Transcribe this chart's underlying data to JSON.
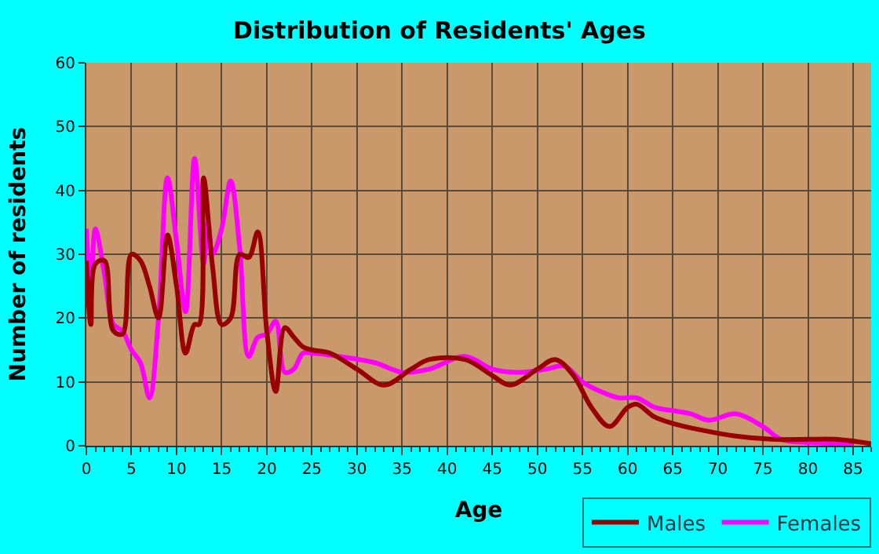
{
  "chart_data": {
    "type": "line",
    "title": "Distribution of Residents' Ages",
    "xlabel": "Age",
    "ylabel": "Number of residents",
    "series": [
      {
        "name": "Males",
        "color": "#990000",
        "x": [
          0,
          0.5,
          1,
          2,
          3,
          4,
          5,
          6,
          7,
          8,
          9,
          10,
          11,
          12,
          12.5,
          13,
          14,
          15,
          16,
          17,
          18,
          19,
          20,
          21,
          22,
          23,
          24,
          25,
          27,
          30,
          33,
          36,
          38,
          42,
          45,
          47,
          50,
          52,
          54,
          56,
          58,
          60,
          61,
          63,
          65,
          68,
          72,
          76,
          80,
          83,
          87
        ],
        "values": [
          29,
          19,
          28.5,
          29,
          18,
          17.5,
          30,
          29,
          25,
          20,
          33,
          25,
          14.5,
          19,
          19,
          42,
          28,
          19,
          20,
          30,
          29.5,
          33.5,
          18,
          8.5,
          18.5,
          17,
          15.5,
          15,
          14.5,
          12,
          9.5,
          12,
          13.5,
          13.5,
          11,
          9.5,
          12,
          13.5,
          11,
          6,
          3,
          6,
          6.5,
          4.5,
          3.5,
          2.5,
          1.5,
          1,
          1,
          1,
          0.3
        ]
      },
      {
        "name": "Females",
        "color": "#ff00ff",
        "x": [
          0,
          0.5,
          1,
          2,
          3,
          4,
          5,
          6,
          7,
          8,
          9,
          10,
          11,
          12,
          13,
          13.5,
          14,
          15,
          16,
          17,
          18,
          19,
          20,
          21,
          22,
          23,
          24,
          25,
          28,
          32,
          35,
          38,
          42,
          45,
          48,
          51,
          53,
          55,
          57,
          59,
          61,
          63,
          65,
          67,
          69,
          72,
          75,
          77,
          80,
          85
        ],
        "values": [
          34,
          25,
          34,
          27,
          19,
          18,
          15,
          13,
          7.5,
          20,
          42,
          32,
          21,
          45,
          28.5,
          35,
          30,
          34,
          41.5,
          31,
          14,
          17,
          17.5,
          19.5,
          11.5,
          12,
          14.5,
          14.5,
          14,
          13,
          11.5,
          12,
          14,
          12,
          11.5,
          12,
          12.5,
          10,
          8.5,
          7.5,
          7.5,
          6,
          5.5,
          5,
          4,
          5,
          3,
          1,
          0.5,
          0.3
        ]
      }
    ],
    "xlim": [
      0,
      87
    ],
    "xticks": [
      0,
      5,
      10,
      15,
      20,
      25,
      30,
      35,
      40,
      45,
      50,
      55,
      60,
      65,
      70,
      75,
      80,
      85
    ],
    "ylim": [
      0,
      60
    ],
    "yticks": [
      0,
      10,
      20,
      30,
      40,
      50,
      60
    ],
    "grid": true,
    "legend": "bottom right",
    "marker": "none",
    "line_style": "solid"
  }
}
